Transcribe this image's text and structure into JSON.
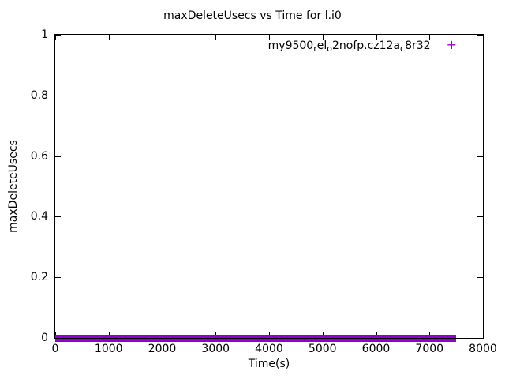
{
  "legend": {
    "marker": "+",
    "marker_color": "#9400d3",
    "parts": [
      {
        "t": "my9500"
      },
      {
        "t": "r",
        "sub": true
      },
      {
        "t": "el"
      },
      {
        "t": "o",
        "sub": true
      },
      {
        "t": "2nofp.cz12a"
      },
      {
        "t": "c",
        "sub": true
      },
      {
        "t": "8r32"
      }
    ],
    "plain": "my9500_rel_o2nofp.cz12a_c8r32"
  },
  "colors": {
    "series": "#9400d3",
    "text": "#000000",
    "background": "#ffffff"
  },
  "chart_data": {
    "type": "scatter",
    "title": "maxDeleteUsecs vs Time for l.i0",
    "xlabel": "Time(s)",
    "ylabel": "maxDeleteUsecs",
    "xlim": [
      0,
      8000
    ],
    "ylim": [
      0,
      1
    ],
    "x_ticks": [
      "0",
      "1000",
      "2000",
      "3000",
      "4000",
      "5000",
      "6000",
      "7000",
      "8000"
    ],
    "y_ticks": [
      "0",
      "0.2",
      "0.4",
      "0.6",
      "0.8",
      "1"
    ],
    "grid": false,
    "legend_position": "top-right-inside",
    "series": [
      {
        "name": "my9500_rel_o2nofp.cz12a_c8r32",
        "color": "#9400d3",
        "marker": "+",
        "x_start": 0,
        "x_end": 7500,
        "y_constant": 0,
        "note": "dense overlapping + point markers forming a solid thick horizontal band at y=0 from x=0 to x~7500; black axis line visible through the band"
      }
    ]
  }
}
